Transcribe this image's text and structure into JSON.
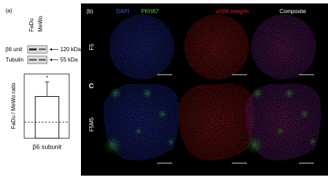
{
  "panel_a": {
    "label": "(a)",
    "blot": {
      "lanes": [
        "FaDu",
        "MeWo"
      ],
      "rows": [
        {
          "name": "β6 unit",
          "size": "120 kDa"
        },
        {
          "name": "Tubulin",
          "size": "55 kDa"
        }
      ]
    },
    "bar_chart": {
      "type": "bar",
      "y_label": "FaDu / MeWo ratio",
      "x_label": "β6 subunit",
      "values": [
        2.6
      ],
      "errors": [
        0.9
      ],
      "reference": 1,
      "annotation": "*",
      "ylim": [
        0,
        4
      ],
      "color": "#ffffff"
    }
  },
  "panel_b": {
    "label": "(b)",
    "headers": [
      {
        "text": "DAPI",
        "color": "#3a5bff"
      },
      {
        "text": "PKH67",
        "color": "#3fdc3f"
      },
      {
        "text": "αVβ6 integrin",
        "color": "#e02020"
      },
      {
        "text": "Composite",
        "color": "#ffffff"
      }
    ],
    "section_label": "C",
    "rows": [
      "F5",
      "F5M5"
    ]
  }
}
